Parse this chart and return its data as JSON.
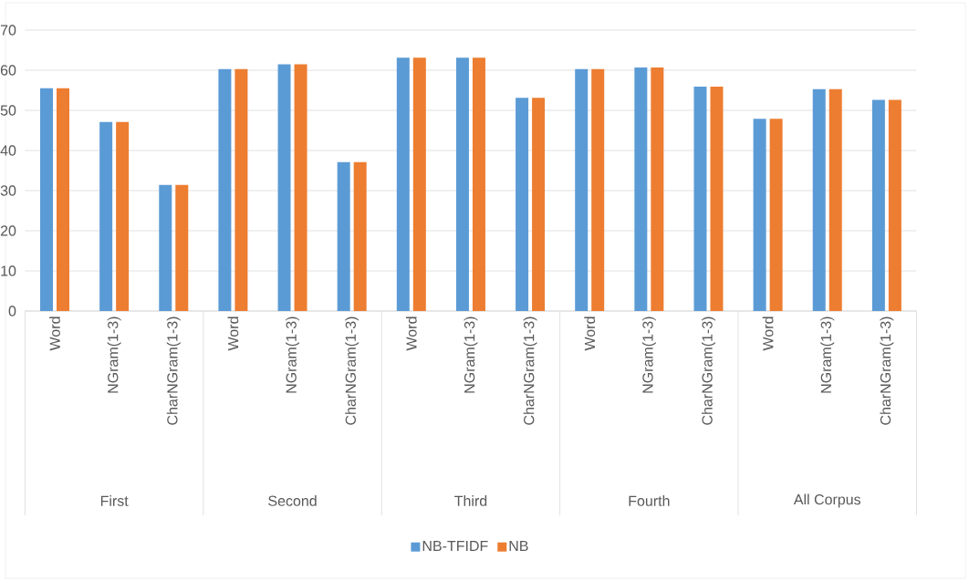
{
  "chart_data": {
    "type": "bar",
    "categories": [
      "Word",
      "NGram(1-3)",
      "CharNGram(1-3)",
      "Word",
      "NGram(1-3)",
      "CharNGram(1-3)",
      "Word",
      "NGram(1-3)",
      "CharNGram(1-3)",
      "Word",
      "NGram(1-3)",
      "CharNGram(1-3)",
      "Word",
      "NGram(1-3)",
      "CharNGram(1-3)"
    ],
    "series": [
      {
        "name": "NB-TFIDF",
        "color": "#5b9bd5",
        "values": [
          55.5,
          47.1,
          31.4,
          60.3,
          61.5,
          37.1,
          63.1,
          63.1,
          53.1,
          60.3,
          60.7,
          55.9,
          47.9,
          55.3,
          52.6
        ]
      },
      {
        "name": "NB",
        "color": "#ed7d31",
        "values": [
          55.5,
          47.1,
          31.4,
          60.3,
          61.5,
          37.1,
          63.1,
          63.1,
          53.1,
          60.3,
          60.7,
          55.9,
          47.9,
          55.3,
          52.6
        ]
      }
    ],
    "ylim": [
      0,
      70
    ],
    "yticks": [
      0,
      10,
      20,
      30,
      40,
      50,
      60,
      70
    ],
    "grid": "y",
    "legend": "bottom",
    "annotations": [
      "First",
      "Second",
      "Third",
      "Fourth",
      "All Corpus"
    ]
  }
}
